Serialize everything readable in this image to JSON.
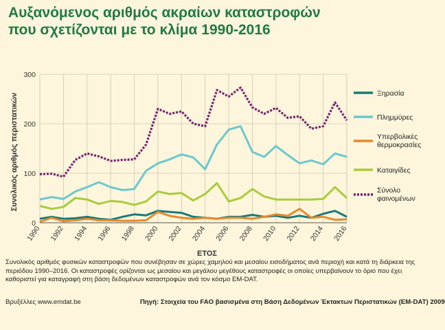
{
  "title_lines": [
    "Αυξανόμενος αριθμός ακραίων καταστροφών",
    "που σχετίζονται με το κλίμα 1990-2016"
  ],
  "notes": "Συνολικός αριθμός φυσικών καταστροφών που συνέβησαν σε χώρες χαμηλού και μεσαίου εισοδήματος ανά περιοχή και κατά τη διάρκεια της περιόδου 1990–2016. Οι καταστροφές ορίζονται ως μεσαίου και μεγάλου μεγέθους καταστροφές οι οποίες υπερβαίνουν το όριο που έχει καθοριστεί για καταγραφή στη βάση δεδομένων καταστροφών ανά τον κόσμο EM-DAT.",
  "footer_left": "Βρυξέλλες www.emdat.be",
  "footer_source": "Πηγή: Στοιχεία του FAO βασισμένα στη Βάση Δεδομένων Έκτακτων Περιστατικών (EM-DAT) 2009",
  "chart_data": {
    "type": "line",
    "xlabel": "ΕΤΟΣ",
    "ylabel": "Συνολικός αριθμός περιστατικών",
    "ylim": [
      0,
      300
    ],
    "yticks": [
      0,
      100,
      200,
      300
    ],
    "xlim": [
      1990,
      2016
    ],
    "xticks": [
      1990,
      1992,
      1994,
      1996,
      1998,
      2000,
      2002,
      2004,
      2006,
      2008,
      2010,
      2012,
      2014,
      2016
    ],
    "grid": true,
    "legend": "right",
    "x": [
      1990,
      1991,
      1992,
      1993,
      1994,
      1995,
      1996,
      1997,
      1998,
      1999,
      2000,
      2001,
      2002,
      2003,
      2004,
      2005,
      2006,
      2007,
      2008,
      2009,
      2010,
      2011,
      2012,
      2013,
      2014,
      2015,
      2016
    ],
    "series": [
      {
        "name": "Ξηρασία",
        "color": "#1a7a7a",
        "dash": false,
        "values": [
          8,
          12,
          8,
          9,
          12,
          8,
          6,
          12,
          17,
          15,
          24,
          22,
          20,
          12,
          10,
          8,
          12,
          12,
          16,
          12,
          14,
          10,
          14,
          10,
          18,
          24,
          12
        ]
      },
      {
        "name": "Πλημμύρες",
        "color": "#6cc8cc",
        "dash": false,
        "values": [
          47,
          52,
          48,
          63,
          72,
          82,
          72,
          66,
          68,
          105,
          120,
          128,
          138,
          132,
          108,
          158,
          188,
          195,
          143,
          133,
          155,
          137,
          120,
          126,
          118,
          140,
          133
        ]
      },
      {
        "name": "Υπερβολικές θερμοκρασίες",
        "color": "#e8892a",
        "dash": false,
        "values": [
          2,
          10,
          3,
          5,
          8,
          5,
          5,
          4,
          4,
          5,
          22,
          14,
          10,
          8,
          10,
          8,
          10,
          10,
          8,
          12,
          17,
          14,
          28,
          10,
          12,
          6,
          7
        ]
      },
      {
        "name": "Καταιγίδες",
        "color": "#a8cc3c",
        "dash": false,
        "values": [
          34,
          28,
          32,
          50,
          47,
          38,
          44,
          42,
          36,
          43,
          63,
          58,
          60,
          45,
          58,
          80,
          43,
          50,
          68,
          53,
          47,
          47,
          47,
          47,
          48,
          72,
          50
        ]
      },
      {
        "name": "Σύνολο φαινομένων",
        "color": "#7a1f6e",
        "dash": true,
        "values": [
          98,
          99,
          93,
          127,
          140,
          134,
          125,
          127,
          128,
          158,
          230,
          220,
          225,
          200,
          195,
          268,
          255,
          273,
          233,
          220,
          232,
          212,
          215,
          190,
          195,
          243,
          207
        ]
      }
    ]
  }
}
